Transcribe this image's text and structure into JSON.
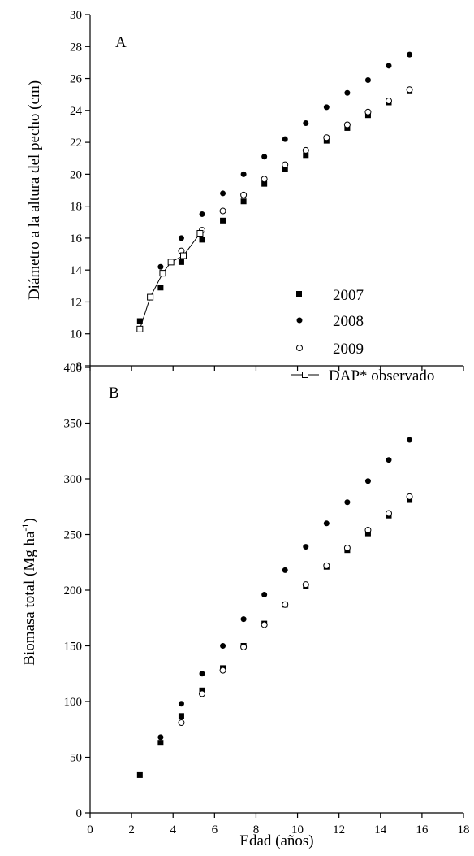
{
  "chart_data": [
    {
      "type": "scatter",
      "panel_label": "A",
      "title": "",
      "xlabel": "",
      "ylabel": "Diámetro a la altura del pecho (cm)",
      "xlim": [
        0,
        18
      ],
      "ylim": [
        8,
        30
      ],
      "yticks": [
        "8",
        "10",
        "12",
        "14",
        "16",
        "18",
        "20",
        "22",
        "24",
        "26",
        "28",
        "30"
      ],
      "legend_position": "bottom-right",
      "series": [
        {
          "name": "2007",
          "marker": "filled-square",
          "line": false,
          "x": [
            2.4,
            3.4,
            4.4,
            5.4,
            6.4,
            7.4,
            8.4,
            9.4,
            10.4,
            11.4,
            12.4,
            13.4,
            14.4,
            15.4
          ],
          "y": [
            10.8,
            12.9,
            14.5,
            15.9,
            17.1,
            18.3,
            19.4,
            20.3,
            21.2,
            22.1,
            22.9,
            23.7,
            24.5,
            25.2
          ]
        },
        {
          "name": "2008",
          "marker": "filled-circle",
          "line": false,
          "x": [
            3.4,
            4.4,
            5.4,
            6.4,
            7.4,
            8.4,
            9.4,
            10.4,
            11.4,
            12.4,
            13.4,
            14.4,
            15.4
          ],
          "y": [
            14.2,
            16.0,
            17.5,
            18.8,
            20.0,
            21.1,
            22.2,
            23.2,
            24.2,
            25.1,
            25.9,
            26.8,
            27.5
          ]
        },
        {
          "name": "2009",
          "marker": "open-circle",
          "line": false,
          "x": [
            4.4,
            5.4,
            6.4,
            7.4,
            8.4,
            9.4,
            10.4,
            11.4,
            12.4,
            13.4,
            14.4,
            15.4
          ],
          "y": [
            15.2,
            16.5,
            17.7,
            18.7,
            19.7,
            20.6,
            21.5,
            22.3,
            23.1,
            23.9,
            24.6,
            25.3
          ]
        },
        {
          "name": "DAP* observado",
          "marker": "open-square",
          "line": true,
          "x": [
            2.4,
            2.9,
            3.5,
            3.9,
            4.5,
            5.3
          ],
          "y": [
            10.3,
            12.3,
            13.8,
            14.5,
            14.9,
            16.3
          ]
        }
      ]
    },
    {
      "type": "scatter",
      "panel_label": "B",
      "title": "",
      "xlabel": "Edad (años)",
      "ylabel": "Biomasa total (Mg ha-1)",
      "ylabel_main": "Biomasa total (Mg ha",
      "ylabel_sup": "-1",
      "ylabel_close": ")",
      "xlim": [
        0,
        18
      ],
      "ylim": [
        0,
        400
      ],
      "xticks": [
        "0",
        "2",
        "4",
        "6",
        "8",
        "10",
        "12",
        "14",
        "16",
        "18"
      ],
      "yticks": [
        "0",
        "50",
        "100",
        "150",
        "200",
        "250",
        "300",
        "350",
        "400"
      ],
      "series": [
        {
          "name": "2007",
          "marker": "filled-square",
          "line": false,
          "x": [
            2.4,
            3.4,
            4.4,
            5.4,
            6.4,
            7.4,
            8.4,
            9.4,
            10.4,
            11.4,
            12.4,
            13.4,
            14.4,
            15.4
          ],
          "y": [
            34,
            63,
            87,
            110,
            130,
            150,
            170,
            187,
            204,
            221,
            236,
            251,
            267,
            281
          ]
        },
        {
          "name": "2008",
          "marker": "filled-circle",
          "line": false,
          "x": [
            3.4,
            4.4,
            5.4,
            6.4,
            7.4,
            8.4,
            9.4,
            10.4,
            11.4,
            12.4,
            13.4,
            14.4,
            15.4
          ],
          "y": [
            68,
            98,
            125,
            150,
            174,
            196,
            218,
            239,
            260,
            279,
            298,
            317,
            335
          ]
        },
        {
          "name": "2009",
          "marker": "open-circle",
          "line": false,
          "x": [
            4.4,
            5.4,
            6.4,
            7.4,
            8.4,
            9.4,
            10.4,
            11.4,
            12.4,
            13.4,
            14.4,
            15.4
          ],
          "y": [
            81,
            107,
            128,
            149,
            169,
            187,
            205,
            222,
            238,
            254,
            269,
            284
          ]
        }
      ]
    }
  ]
}
